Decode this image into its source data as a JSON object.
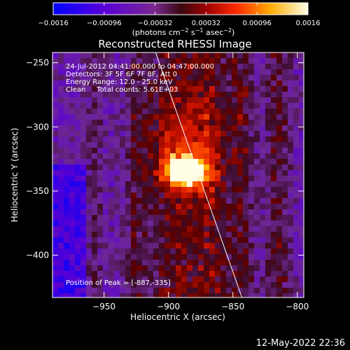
{
  "chart_data": {
    "type": "heatmap",
    "title": "Reconstructed RHESSI Image",
    "xlabel": "Heliocentric X (arcsec)",
    "ylabel": "Heliocentric Y (arcsec)",
    "xlim": [
      -990,
      -795
    ],
    "ylim": [
      -433,
      -242
    ],
    "x_ticks": [
      -950,
      -900,
      -850,
      -800
    ],
    "y_ticks": [
      -250,
      -300,
      -350,
      -400
    ],
    "x_tick_labels": [
      "−950",
      "−900",
      "−850",
      "−800"
    ],
    "y_tick_labels": [
      "−250",
      "−300",
      "−350",
      "−400"
    ],
    "colorbar": {
      "range": [
        -0.0016,
        0.0016
      ],
      "ticks": [
        -0.0016,
        -0.00096,
        -0.00032,
        0.00032,
        0.00096,
        0.0016
      ],
      "tick_labels": [
        "−0.0016",
        "−0.00096",
        "−0.00032",
        "0.00032",
        "0.00096",
        "0.0016"
      ],
      "unit_label_prefix": "(photons cm",
      "unit_sup1": "−2",
      "unit_mid": " s",
      "unit_sup2": "−1",
      "unit_mid2": " asec",
      "unit_sup3": "−2",
      "unit_suffix": ")",
      "colors": [
        "#0000ff",
        "#7a00c8",
        "#5a0f5a",
        "#8b0000",
        "#ff2200",
        "#ff9900",
        "#ffff60",
        "#ffffff"
      ]
    },
    "annotations": {
      "time_range": "24-Jul-2012 04:41:00.000 to 04:47:00.000",
      "detectors": "Detectors: 3F 5F 6F 7F 8F, Att 0",
      "energy_range": "Energy Range: 12.0 - 25.0 keV",
      "method_counts": "Clean     Total counts: 5.61E+03",
      "peak": "Position of Peak = [-887,-335]"
    },
    "peak": {
      "x": -887,
      "y": -335
    },
    "limb_line": {
      "x": [
        -910,
        -843
      ],
      "y": [
        -242,
        -433
      ]
    }
  },
  "footer": {
    "timestamp": "12-May-2022 22:36"
  }
}
